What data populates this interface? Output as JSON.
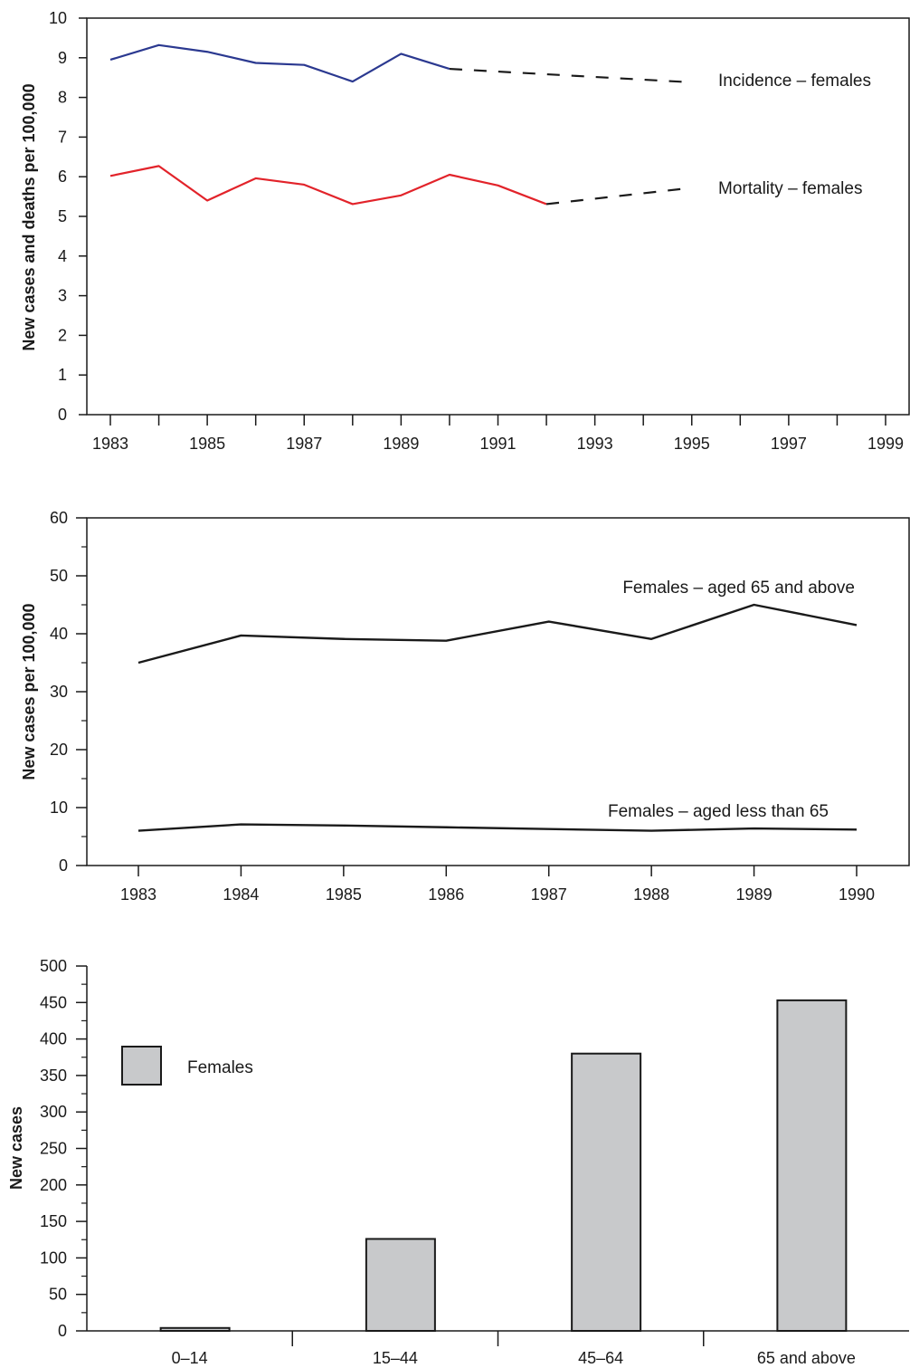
{
  "chart_data": [
    {
      "type": "line",
      "xlabel": "",
      "ylabel": "New cases and deaths per 100,000",
      "xlim": [
        1983,
        1999
      ],
      "ylim": [
        0,
        10
      ],
      "x_ticks": [
        1983,
        1985,
        1987,
        1989,
        1991,
        1993,
        1995,
        1997,
        1999
      ],
      "y_ticks": [
        0,
        1,
        2,
        3,
        4,
        5,
        6,
        7,
        8,
        9,
        10
      ],
      "grid": false,
      "series": [
        {
          "name": "Incidence – females",
          "color": "#2b3990",
          "x": [
            1983,
            1984,
            1985,
            1986,
            1987,
            1988,
            1989,
            1990
          ],
          "y": [
            8.95,
            9.32,
            9.15,
            8.87,
            8.82,
            8.4,
            9.1,
            8.72
          ],
          "projection": {
            "x": [
              1990,
              1995
            ],
            "y": [
              8.72,
              8.38
            ]
          }
        },
        {
          "name": "Mortality – females",
          "color": "#e2232a",
          "x": [
            1983,
            1984,
            1985,
            1986,
            1987,
            1988,
            1989,
            1990,
            1991,
            1992
          ],
          "y": [
            6.02,
            6.27,
            5.4,
            5.96,
            5.8,
            5.31,
            5.53,
            6.05,
            5.78,
            5.31
          ],
          "projection": {
            "x": [
              1992,
              1995
            ],
            "y": [
              5.31,
              5.72
            ]
          }
        }
      ]
    },
    {
      "type": "line",
      "xlabel": "",
      "ylabel": "New cases per 100,000",
      "categories": [
        "1983",
        "1984",
        "1985",
        "1986",
        "1987",
        "1988",
        "1989",
        "1990"
      ],
      "ylim": [
        0,
        60
      ],
      "y_ticks": [
        0,
        10,
        20,
        30,
        40,
        50,
        60
      ],
      "grid": false,
      "series": [
        {
          "name": "Females – aged 65 and above",
          "color": "#1a1a1a",
          "values": [
            35.0,
            39.7,
            39.1,
            38.8,
            42.1,
            39.1,
            45.0,
            41.5
          ]
        },
        {
          "name": "Females – aged less than 65",
          "color": "#1a1a1a",
          "values": [
            6.0,
            7.1,
            6.9,
            6.6,
            6.3,
            6.0,
            6.4,
            6.2
          ]
        }
      ]
    },
    {
      "type": "bar",
      "xlabel": "",
      "ylabel": "New cases",
      "categories": [
        "0–14",
        "15–44",
        "45–64",
        "65 and above"
      ],
      "ylim": [
        0,
        500
      ],
      "y_ticks": [
        0,
        50,
        100,
        150,
        200,
        250,
        300,
        350,
        400,
        450,
        500
      ],
      "grid": false,
      "legend": "top-left",
      "series": [
        {
          "name": "Females",
          "color": "#c8c9cb",
          "values": [
            4,
            126,
            380,
            453
          ]
        }
      ]
    }
  ]
}
